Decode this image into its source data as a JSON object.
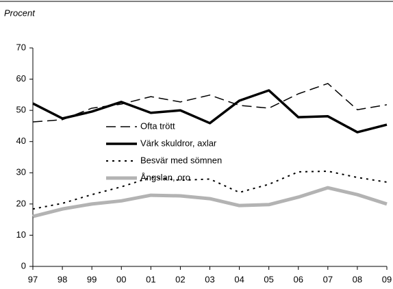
{
  "chart_data": {
    "type": "line",
    "title": "Procent",
    "categories": [
      "97",
      "98",
      "99",
      "00",
      "01",
      "02",
      "03",
      "04",
      "05",
      "06",
      "07",
      "08",
      "09"
    ],
    "series": [
      {
        "name": "Ofta trött",
        "color": "#000000",
        "dash": "dashed",
        "width": 1.5,
        "values": [
          46.3,
          47,
          50.7,
          52,
          54.4,
          52.7,
          54.9,
          51.6,
          50.7,
          55.3,
          58.6,
          50.2,
          51.8
        ]
      },
      {
        "name": "Värk skuldror, axlar",
        "color": "#000000",
        "dash": "solid",
        "width": 3.5,
        "values": [
          52.2,
          47.4,
          49.6,
          52.7,
          49.2,
          50,
          45.9,
          53.1,
          56.4,
          47.8,
          48.1,
          43,
          45.4
        ]
      },
      {
        "name": "Besvär med sömnen",
        "color": "#000000",
        "dash": "dotted",
        "width": 2,
        "values": [
          18.4,
          20.2,
          23,
          25.5,
          28.5,
          27.6,
          28,
          23.7,
          26.3,
          30.3,
          30.5,
          28.5,
          27
        ]
      },
      {
        "name": "Ångslan, oro",
        "color": "#b3b3b3",
        "dash": "solid",
        "width": 5,
        "values": [
          16,
          18.4,
          20,
          21,
          22.8,
          22.6,
          21.7,
          19.5,
          19.8,
          22.2,
          25.2,
          23,
          20
        ]
      }
    ],
    "ylim": [
      0,
      70
    ],
    "yticks": [
      0,
      10,
      20,
      30,
      40,
      50,
      60,
      70
    ],
    "grid": false
  }
}
